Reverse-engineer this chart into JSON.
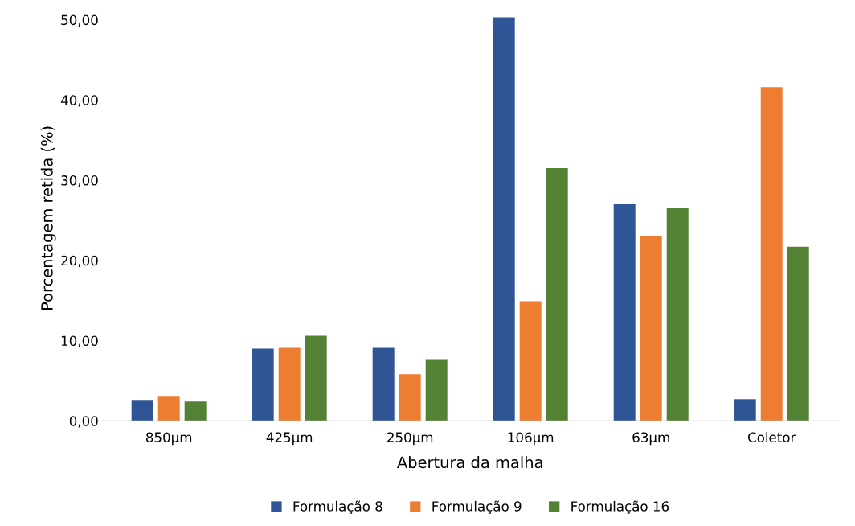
{
  "chart_data": {
    "type": "bar",
    "xlabel": "Abertura da malha",
    "ylabel": "Porcentagem retida (%)",
    "categories": [
      "850µm",
      "425µm",
      "250µm",
      "106µm",
      "63µm",
      "Coletor"
    ],
    "series": [
      {
        "name": "Formulação 8",
        "color": "#2f5597",
        "values": [
          2.6,
          9.0,
          9.1,
          50.3,
          27.0,
          2.7
        ]
      },
      {
        "name": "Formulação 9",
        "color": "#ed7d31",
        "values": [
          3.1,
          9.1,
          5.8,
          14.9,
          23.0,
          41.6
        ]
      },
      {
        "name": "Formulação 16",
        "color": "#548235",
        "values": [
          2.4,
          10.6,
          7.7,
          31.5,
          26.6,
          21.7
        ]
      }
    ],
    "ylim": [
      0,
      50.5
    ],
    "yticks": [
      {
        "value": 0,
        "label": "0,00"
      },
      {
        "value": 10,
        "label": "10,00"
      },
      {
        "value": 20,
        "label": "20,00"
      },
      {
        "value": 30,
        "label": "30,00"
      },
      {
        "value": 40,
        "label": "40,00"
      },
      {
        "value": 50,
        "label": "50,00"
      }
    ],
    "grid": false,
    "legend": "bottom"
  }
}
